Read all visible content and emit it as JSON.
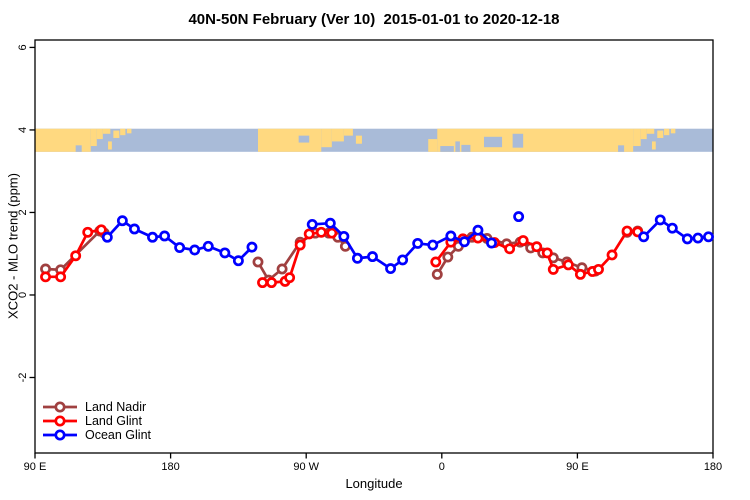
{
  "header": {
    "title": "40N-50N February (Ver 10)  2015-01-01 to 2020-12-18"
  },
  "chart_data": {
    "type": "line",
    "title": "40N-50N February (Ver 10)  2015-01-01 to 2020-12-18",
    "xlabel": "Longitude",
    "ylabel": "XCO2 - MLO trend (ppm)",
    "grid": false,
    "legend_position": "bottom-left",
    "xlim": [
      90,
      540
    ],
    "ylim": [
      -3.83,
      6.18
    ],
    "x_ticks": [
      {
        "lon": 90,
        "label": "90 E"
      },
      {
        "lon": 180,
        "label": "180"
      },
      {
        "lon": 270,
        "label": "90 W"
      },
      {
        "lon": 360,
        "label": "0"
      },
      {
        "lon": 450,
        "label": "90 E"
      },
      {
        "lon": 540,
        "label": "180"
      }
    ],
    "y_ticks": [
      {
        "v": -2,
        "label": "-2"
      },
      {
        "v": 0,
        "label": "0"
      },
      {
        "v": 2,
        "label": "2"
      },
      {
        "v": 4,
        "label": "4"
      },
      {
        "v": 6,
        "label": "6"
      }
    ],
    "map_band": {
      "description": "land/ocean strip for the 40N-50N latitude band, longitude wraps 90E to 180",
      "v_top": 4.03,
      "v_bottom": 3.47,
      "land_color": "#FFD980",
      "ocean_color": "#A9BBD8",
      "rects": [
        {
          "l": 90,
          "w": 37,
          "t": 0,
          "h": 1
        },
        {
          "l": 127,
          "w": 4,
          "t": 0,
          "h": 0.75
        },
        {
          "l": 131,
          "w": 4,
          "t": 0,
          "h": 0.45
        },
        {
          "l": 135,
          "w": 5,
          "t": 0,
          "h": 0.22
        },
        {
          "l": 138.5,
          "w": 2.5,
          "t": 0.55,
          "h": 0.35
        },
        {
          "l": 142,
          "w": 4,
          "t": 0.08,
          "h": 0.32
        },
        {
          "l": 146.5,
          "w": 3.5,
          "t": 0,
          "h": 0.28
        },
        {
          "l": 151,
          "w": 3,
          "t": 0,
          "h": 0.2
        },
        {
          "l": 238,
          "w": 42,
          "t": 0,
          "h": 1
        },
        {
          "l": 280,
          "w": 7,
          "t": 0,
          "h": 0.8
        },
        {
          "l": 287,
          "w": 8,
          "t": 0,
          "h": 0.55
        },
        {
          "l": 295,
          "w": 6,
          "t": 0,
          "h": 0.3
        },
        {
          "l": 303,
          "w": 4,
          "t": 0.3,
          "h": 0.35
        },
        {
          "l": 351,
          "w": 6,
          "t": 0.45,
          "h": 0.55
        },
        {
          "l": 357,
          "w": 130,
          "t": 0,
          "h": 1
        },
        {
          "l": 487,
          "w": 5,
          "t": 0,
          "h": 0.75
        },
        {
          "l": 492,
          "w": 4,
          "t": 0,
          "h": 0.45
        },
        {
          "l": 496,
          "w": 5,
          "t": 0,
          "h": 0.22
        },
        {
          "l": 499.5,
          "w": 2.5,
          "t": 0.55,
          "h": 0.35
        },
        {
          "l": 503,
          "w": 4,
          "t": 0.08,
          "h": 0.32
        },
        {
          "l": 507.5,
          "w": 3.5,
          "t": 0,
          "h": 0.28
        },
        {
          "l": 512,
          "w": 3,
          "t": 0,
          "h": 0.2
        },
        {
          "l": 117,
          "w": 4,
          "t": 0.72,
          "h": 0.28,
          "c": 0
        },
        {
          "l": 265,
          "w": 7,
          "t": 0.3,
          "h": 0.3,
          "c": 0
        },
        {
          "l": 359,
          "w": 9,
          "t": 0.75,
          "h": 0.25,
          "c": 0
        },
        {
          "l": 369,
          "w": 3,
          "t": 0.55,
          "h": 0.45,
          "c": 0
        },
        {
          "l": 373,
          "w": 6,
          "t": 0.7,
          "h": 0.3,
          "c": 0
        },
        {
          "l": 388,
          "w": 12,
          "t": 0.35,
          "h": 0.45,
          "c": 0
        },
        {
          "l": 407,
          "w": 7,
          "t": 0.22,
          "h": 0.6,
          "c": 0
        },
        {
          "l": 477,
          "w": 4,
          "t": 0.72,
          "h": 0.28,
          "c": 0
        }
      ]
    },
    "series": [
      {
        "name": "Land Nadir",
        "color": "#A04040",
        "segments": [
          [
            [
              97,
              0.63
            ],
            [
              107,
              0.61
            ],
            [
              133,
              1.55
            ],
            [
              136,
              1.5
            ]
          ],
          [
            [
              238,
              0.8
            ],
            [
              245,
              0.36
            ],
            [
              254,
              0.63
            ],
            [
              266,
              1.28
            ],
            [
              276,
              1.5
            ],
            [
              285,
              1.5
            ],
            [
              291,
              1.4
            ],
            [
              296,
              1.18
            ]
          ],
          [
            [
              357,
              0.5
            ],
            [
              364,
              0.92
            ],
            [
              371,
              1.18
            ],
            [
              380,
              1.4
            ],
            [
              390,
              1.37
            ],
            [
              403,
              1.24
            ],
            [
              412,
              1.28
            ],
            [
              419,
              1.14
            ],
            [
              427,
              1.02
            ],
            [
              434,
              0.9
            ],
            [
              443,
              0.8
            ],
            [
              453,
              0.66
            ],
            [
              462,
              0.58
            ]
          ],
          [
            [
              483,
              1.52
            ],
            [
              490,
              1.55
            ]
          ]
        ]
      },
      {
        "name": "Land Glint",
        "color": "#FF0000",
        "segments": [
          [
            [
              97,
              0.44
            ],
            [
              107,
              0.44
            ],
            [
              117,
              0.95
            ],
            [
              125,
              1.52
            ],
            [
              134,
              1.58
            ]
          ],
          [
            [
              241,
              0.3
            ],
            [
              247,
              0.3
            ],
            [
              256,
              0.33
            ],
            [
              259,
              0.42
            ],
            [
              266,
              1.21
            ],
            [
              272,
              1.48
            ],
            [
              280,
              1.52
            ],
            [
              287,
              1.5
            ]
          ],
          [
            [
              356,
              0.8
            ],
            [
              366,
              1.28
            ],
            [
              374,
              1.36
            ],
            [
              384,
              1.38
            ],
            [
              395,
              1.27
            ],
            [
              405,
              1.12
            ],
            [
              414,
              1.32
            ],
            [
              423,
              1.17
            ],
            [
              430,
              1.02
            ],
            [
              434,
              0.62
            ],
            [
              444,
              0.73
            ],
            [
              452,
              0.5
            ],
            [
              460,
              0.57
            ],
            [
              464,
              0.62
            ],
            [
              473,
              0.97
            ],
            [
              483,
              1.55
            ],
            [
              490,
              1.53
            ]
          ]
        ]
      },
      {
        "name": "Ocean Glint",
        "color": "#0000FF",
        "segments": [
          [
            [
              138,
              1.4
            ],
            [
              148,
              1.8
            ],
            [
              156,
              1.6
            ],
            [
              168,
              1.4
            ],
            [
              176,
              1.43
            ],
            [
              186,
              1.15
            ],
            [
              196,
              1.09
            ],
            [
              205,
              1.18
            ],
            [
              216,
              1.02
            ],
            [
              225,
              0.83
            ],
            [
              234,
              1.16
            ]
          ],
          [
            [
              274,
              1.71
            ],
            [
              286,
              1.74
            ],
            [
              295,
              1.42
            ],
            [
              304,
              0.89
            ],
            [
              314,
              0.93
            ],
            [
              326,
              0.64
            ],
            [
              334,
              0.85
            ],
            [
              344,
              1.25
            ],
            [
              354,
              1.21
            ],
            [
              366,
              1.43
            ],
            [
              375,
              1.29
            ],
            [
              384,
              1.57
            ],
            [
              393,
              1.26
            ]
          ],
          [
            [
              411,
              1.9
            ]
          ],
          [
            [
              494,
              1.41
            ],
            [
              505,
              1.82
            ],
            [
              513,
              1.62
            ],
            [
              523,
              1.36
            ],
            [
              530,
              1.38
            ],
            [
              537,
              1.41
            ]
          ]
        ]
      }
    ]
  }
}
